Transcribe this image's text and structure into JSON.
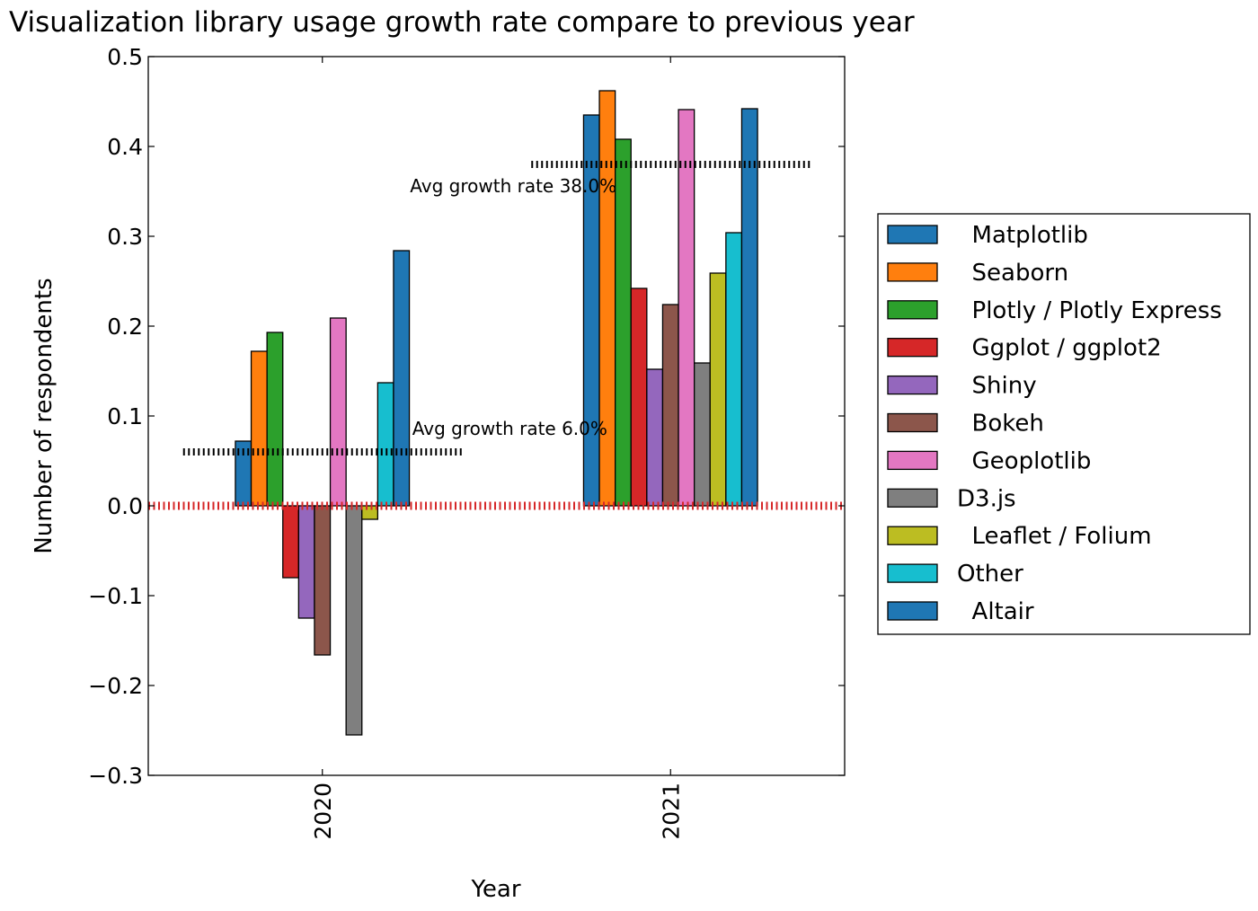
{
  "chart_data": {
    "type": "bar",
    "title": "Visualization library usage growth rate compare to previous year",
    "xlabel": "Year",
    "ylabel": "Number of respondents",
    "categories": [
      "2020",
      "2021"
    ],
    "ylim": [
      -0.3,
      0.5
    ],
    "yticks": [
      "−0.3",
      "−0.2",
      "−0.1",
      "0.0",
      "0.1",
      "0.2",
      "0.3",
      "0.4",
      "0.5"
    ],
    "ytick_values": [
      -0.3,
      -0.2,
      -0.1,
      0.0,
      0.1,
      0.2,
      0.3,
      0.4,
      0.5
    ],
    "grid": false,
    "legend_position": "right",
    "series": [
      {
        "name": "  Matplotlib",
        "color": "#1f77b4",
        "values": [
          0.072,
          0.435
        ]
      },
      {
        "name": "  Seaborn",
        "color": "#ff7f0e",
        "values": [
          0.172,
          0.462
        ]
      },
      {
        "name": "  Plotly / Plotly Express",
        "color": "#2ca02c",
        "values": [
          0.193,
          0.408
        ]
      },
      {
        "name": "  Ggplot / ggplot2",
        "color": "#d62728",
        "values": [
          -0.08,
          0.242
        ]
      },
      {
        "name": "  Shiny",
        "color": "#9467bd",
        "values": [
          -0.125,
          0.152
        ]
      },
      {
        "name": "  Bokeh",
        "color": "#8c564b",
        "values": [
          -0.166,
          0.224
        ]
      },
      {
        "name": "  Geoplotlib",
        "color": "#e377c2",
        "values": [
          0.209,
          0.441
        ]
      },
      {
        "name": "D3.js",
        "color": "#7f7f7f",
        "values": [
          -0.255,
          0.159
        ]
      },
      {
        "name": "  Leaflet / Folium",
        "color": "#bcbd22",
        "values": [
          -0.015,
          0.259
        ]
      },
      {
        "name": "Other",
        "color": "#17becf",
        "values": [
          0.137,
          0.304
        ]
      },
      {
        "name": "  Altair",
        "color": "#1f77b4",
        "values": [
          0.284,
          0.442
        ]
      }
    ],
    "reference_lines": [
      {
        "y": 0.0,
        "color": "#d62728",
        "style": "dotted"
      }
    ],
    "annotations": [
      {
        "category": "2020",
        "avg": 0.06,
        "text": "Avg growth rate 6.0%"
      },
      {
        "category": "2021",
        "avg": 0.38,
        "text": "Avg growth rate 38.0%"
      }
    ]
  }
}
